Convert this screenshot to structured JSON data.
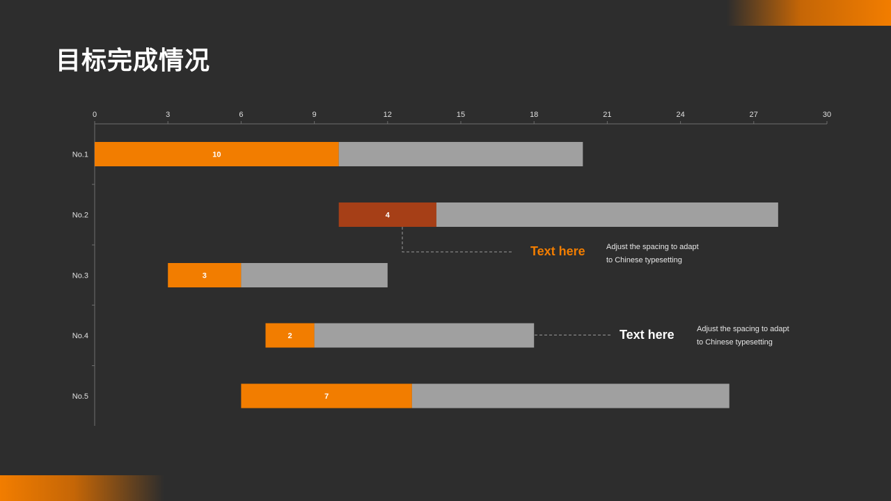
{
  "page": {
    "title": "目标完成情况",
    "accent_color": "#f27d00",
    "background_color": "#2d2d2d"
  },
  "chart_data": {
    "type": "bar",
    "orientation": "horizontal",
    "stacked": true,
    "title": "",
    "xlabel": "",
    "ylabel": "",
    "xlim": [
      0,
      30
    ],
    "x_ticks": [
      0,
      3,
      6,
      9,
      12,
      15,
      18,
      21,
      24,
      27,
      30
    ],
    "axis_position": "top",
    "categories": [
      "No.1",
      "No.2",
      "No.3",
      "No.4",
      "No.5"
    ],
    "series": [
      {
        "values": [
          0,
          10,
          3,
          7,
          6
        ],
        "color": "transparent"
      },
      {
        "values": [
          10,
          4,
          3,
          2,
          7
        ],
        "colors": [
          "#f27d00",
          "#a63f17",
          "#f27d00",
          "#f27d00",
          "#f27d00"
        ],
        "data_labels": true
      },
      {
        "values": [
          10,
          14,
          6,
          9,
          13
        ],
        "color": "#a0a0a0"
      }
    ]
  },
  "callouts": [
    {
      "title": "Text here",
      "title_color": "#f27d00",
      "text_line1": "Adjust the spacing to adapt",
      "text_line2": "to Chinese typesetting"
    },
    {
      "title": "Text here",
      "title_color": "#ffffff",
      "text_line1": "Adjust the spacing to adapt",
      "text_line2": "to Chinese typesetting"
    }
  ]
}
